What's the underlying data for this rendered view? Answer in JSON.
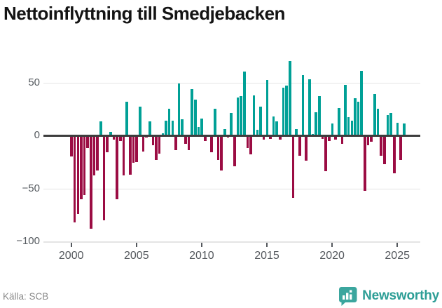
{
  "title": "Nettoinflyttning till Smedjebacken",
  "source": "Källa: SCB",
  "brand": {
    "name": "Newsworthy",
    "badge_color": "#3ba69e",
    "text_color": "#2d9e96",
    "icon": "bar-chart-speech-bubble-icon"
  },
  "chart_data": {
    "type": "bar",
    "title": "Nettoinflyttning till Smedjebacken",
    "frequency": "quarterly",
    "start_year": 2000,
    "x_ticks": [
      "2000",
      "2005",
      "2010",
      "2015",
      "2020",
      "2025"
    ],
    "y_ticks": [
      {
        "value": 50,
        "label": "50"
      },
      {
        "value": 0,
        "label": "0"
      },
      {
        "value": -50,
        "label": "−50"
      },
      {
        "value": -100,
        "label": "−100"
      }
    ],
    "ylim": [
      -100,
      75
    ],
    "grid": true,
    "colors": {
      "positive": "#00a096",
      "negative": "#9b0c43"
    },
    "values": [
      -20,
      -82,
      -74,
      -60,
      -56,
      -12,
      -88,
      -38,
      -33,
      13,
      -80,
      -16,
      3,
      -4,
      -60,
      -5,
      -38,
      32,
      -37,
      -26,
      -25,
      27,
      -15,
      -2,
      13,
      -9,
      -23,
      -17,
      2,
      14,
      25,
      14,
      -14,
      49,
      15,
      -8,
      -14,
      44,
      34,
      8,
      16,
      -5,
      -1,
      -16,
      25,
      -23,
      -33,
      6,
      -2,
      21,
      -29,
      36,
      37,
      60,
      -12,
      -18,
      38,
      5,
      27,
      -4,
      52,
      -3,
      18,
      13,
      -4,
      45,
      47,
      70,
      -59,
      6,
      -19,
      57,
      -24,
      53,
      1,
      22,
      37,
      -3,
      -34,
      -5,
      11,
      -4,
      26,
      -8,
      48,
      17,
      14,
      35,
      32,
      61,
      -52,
      -9,
      -6,
      39,
      25,
      -19,
      -27,
      19,
      21,
      -36,
      12,
      -23,
      11
    ]
  }
}
